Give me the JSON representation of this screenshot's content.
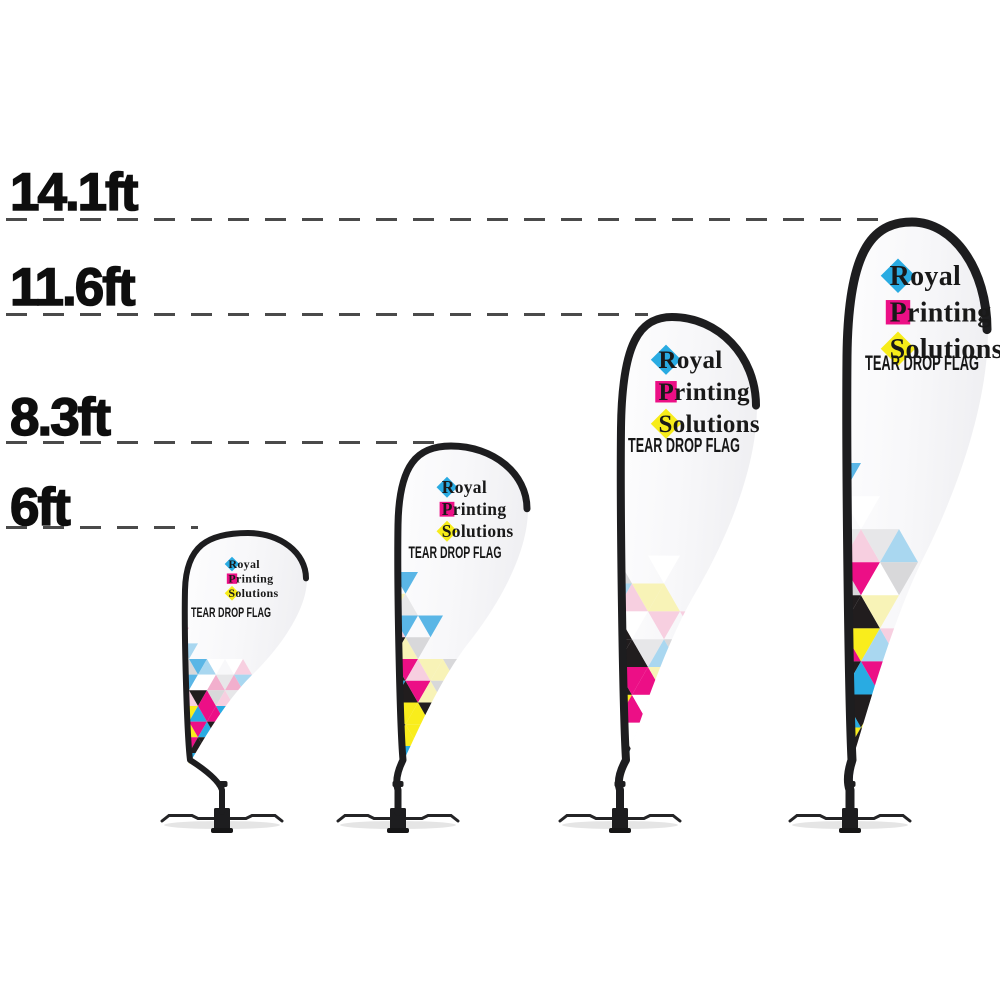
{
  "page": {
    "background": "#ffffff"
  },
  "measurements": {
    "lines": [
      {
        "label": "14.1ft"
      },
      {
        "label": "11.6ft"
      },
      {
        "label": "8.3ft"
      },
      {
        "label": "6ft"
      }
    ]
  },
  "flags": [
    {
      "size": "6ft"
    },
    {
      "size": "8.3ft"
    },
    {
      "size": "11.6ft"
    },
    {
      "size": "14.1ft"
    }
  ],
  "logo": {
    "words": [
      {
        "text": "Royal",
        "marker": "diamond",
        "marker_color": "#29abe2"
      },
      {
        "text": "Printing",
        "marker": "square",
        "marker_color": "#ec0f86"
      },
      {
        "text": "Solutions",
        "marker": "diamond",
        "marker_color": "#f7ec1a"
      }
    ],
    "text_color": "#191919"
  },
  "product_label": "TEAR DROP FLAG",
  "colors": {
    "dashed_line": "#4a4a4a",
    "label_text": "#0e0e0e",
    "pole": "#1d1d1f",
    "fabric_light": "#fdfdfe",
    "fabric_shade": "#efeff2",
    "mosaic_saturated": [
      "#ec0f86",
      "#f9ed1c",
      "#211d1e",
      "#29abe2",
      "#ffffff"
    ],
    "mosaic_pale": [
      "#f2afcd",
      "#a9d7f0",
      "#d8d8da",
      "#f8f3b7",
      "#f7cfe0",
      "#e7e7e9",
      "#5ab6e6",
      "#ffffff"
    ]
  }
}
